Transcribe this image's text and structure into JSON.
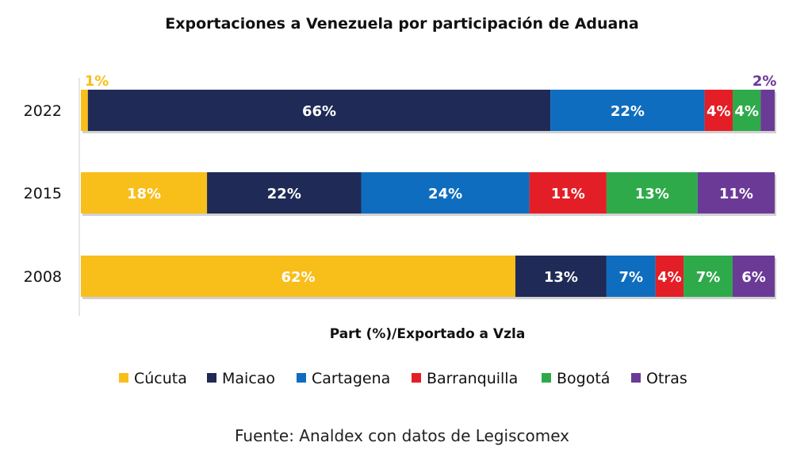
{
  "chart_data": {
    "type": "bar",
    "orientation": "horizontal",
    "stacked": true,
    "title": "Exportaciones a Venezuela por participación de Aduana",
    "xlabel": "Part (%)/Exportado a Vzla",
    "ylabel": "",
    "xlim": [
      0,
      100
    ],
    "grid": false,
    "legend_position": "bottom",
    "categories": [
      "2022",
      "2015",
      "2008"
    ],
    "series": [
      {
        "name": "Cúcuta",
        "color": "#F8BE1A",
        "values": [
          1,
          18,
          62
        ],
        "labels": [
          "1%",
          "18%",
          "62%"
        ]
      },
      {
        "name": "Maicao",
        "color": "#1F2A56",
        "values": [
          66,
          22,
          13
        ],
        "labels": [
          "66%",
          "22%",
          "13%"
        ]
      },
      {
        "name": "Cartagena",
        "color": "#0F6DBF",
        "values": [
          22,
          24,
          7
        ],
        "labels": [
          "22%",
          "24%",
          "7%"
        ]
      },
      {
        "name": "Barranquilla",
        "color": "#E41E26",
        "values": [
          4,
          11,
          4
        ],
        "labels": [
          "4%",
          "11%",
          "4%"
        ]
      },
      {
        "name": "Bogotá",
        "color": "#2EAA4A",
        "values": [
          4,
          13,
          7
        ],
        "labels": [
          "4%",
          "13%",
          "7%"
        ]
      },
      {
        "name": "Otras",
        "color": "#6B3A97",
        "values": [
          2,
          11,
          6
        ],
        "labels": [
          "2%",
          "11%",
          "6%"
        ]
      }
    ],
    "source": "Fuente: Analdex con datos de Legiscomex"
  }
}
